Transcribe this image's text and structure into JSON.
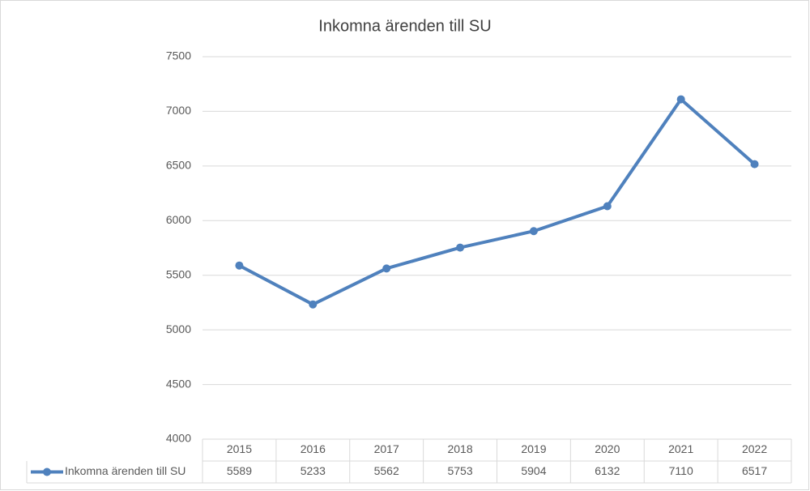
{
  "chart_data": {
    "type": "line",
    "title": "Inkomna ärenden till SU",
    "categories": [
      "2015",
      "2016",
      "2017",
      "2018",
      "2019",
      "2020",
      "2021",
      "2022"
    ],
    "series": [
      {
        "name": "Inkomna ärenden till SU",
        "color": "#4f81bd",
        "values": [
          5589,
          5233,
          5562,
          5753,
          5904,
          6132,
          7110,
          6517
        ]
      }
    ],
    "ylim": [
      4000,
      7500
    ],
    "yticks": [
      4000,
      4500,
      5000,
      5500,
      6000,
      6500,
      7000,
      7500
    ],
    "grid": true,
    "data_table": true
  }
}
